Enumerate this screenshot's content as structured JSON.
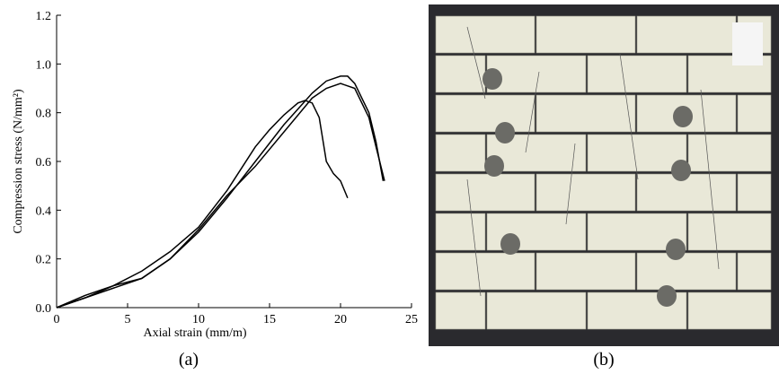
{
  "chart_data": {
    "type": "line",
    "xlabel": "Axial strain (mm/m)",
    "ylabel": "Compression stress (N/mm²)",
    "caption_a": "(a)",
    "caption_b": "(b)",
    "xlim": [
      0,
      25
    ],
    "xticks": [
      0,
      5,
      10,
      15,
      20,
      25
    ],
    "ylim": [
      0,
      1.2
    ],
    "yticks": [
      {
        "value": 0,
        "label": "0.0"
      },
      0.2,
      0.4,
      0.6,
      0.8,
      {
        "value": 1,
        "label": "1.0"
      },
      1.2
    ],
    "series": [
      {
        "color": "#000000",
        "x": [
          0,
          2,
          4,
          6,
          8,
          10,
          12,
          14,
          15,
          16,
          17,
          17.5,
          18,
          18.5,
          19,
          19.5,
          20,
          20.5
        ],
        "values": [
          0,
          0.04,
          0.09,
          0.15,
          0.23,
          0.33,
          0.48,
          0.66,
          0.73,
          0.79,
          0.84,
          0.85,
          0.84,
          0.78,
          0.6,
          0.55,
          0.52,
          0.45
        ]
      },
      {
        "color": "#000000",
        "x": [
          0,
          2,
          4,
          6,
          8,
          10,
          12,
          14,
          16,
          18,
          19,
          20,
          20.5,
          21,
          22,
          22.5,
          23
        ],
        "values": [
          0,
          0.04,
          0.08,
          0.12,
          0.2,
          0.31,
          0.45,
          0.6,
          0.75,
          0.88,
          0.93,
          0.95,
          0.95,
          0.92,
          0.8,
          0.68,
          0.52
        ]
      },
      {
        "color": "#000000",
        "x": [
          0,
          2,
          4,
          6,
          8,
          10,
          12,
          14,
          16,
          18,
          19,
          20,
          21,
          22,
          22.5,
          23.1
        ],
        "values": [
          0,
          0.05,
          0.09,
          0.12,
          0.2,
          0.32,
          0.46,
          0.58,
          0.72,
          0.86,
          0.9,
          0.92,
          0.9,
          0.78,
          0.66,
          0.52
        ]
      }
    ]
  }
}
